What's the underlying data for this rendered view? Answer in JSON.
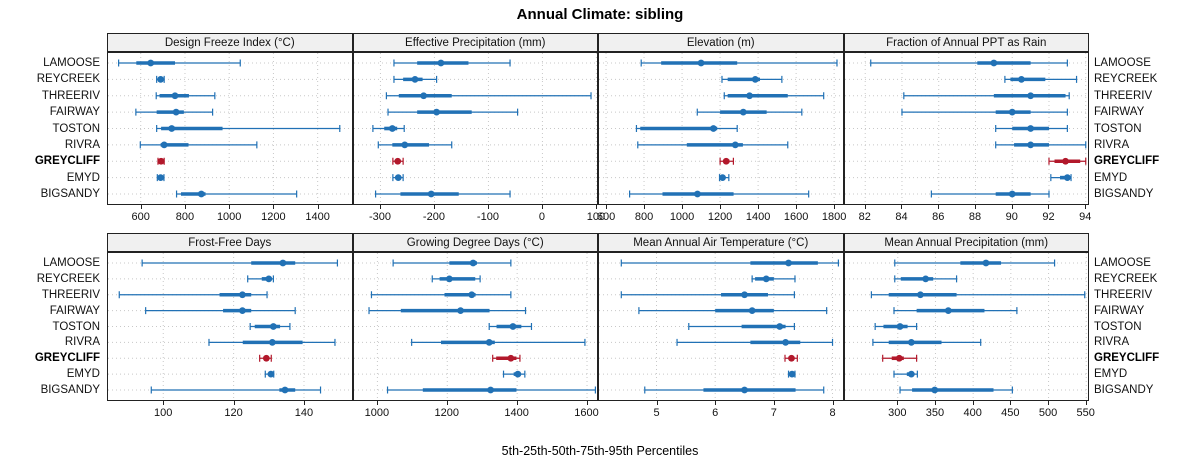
{
  "title": "Annual Climate: sibling",
  "xlabel": "5th-25th-50th-75th-95th Percentiles",
  "sites": [
    "LAMOOSE",
    "REYCREEK",
    "THREERIV",
    "FAIRWAY",
    "TOSTON",
    "RIVRA",
    "GREYCLIFF",
    "EMYD",
    "BIGSANDY"
  ],
  "highlight_site": "GREYCLIFF",
  "colors": {
    "series_normal": "#2171b5",
    "series_highlight": "#b2182b",
    "grid": "#c8c8c8",
    "strip_bg": "#f0f0f0",
    "panel_border": "#222222",
    "text": "#111111"
  },
  "chart_data": {
    "type": "scatter",
    "subtype": "percentile-interval-dotplot",
    "percentiles": [
      5,
      25,
      50,
      75,
      95
    ],
    "grid": "dotted",
    "categories": [
      "LAMOOSE",
      "REYCREEK",
      "THREERIV",
      "FAIRWAY",
      "TOSTON",
      "RIVRA",
      "GREYCLIFF",
      "EMYD",
      "BIGSANDY"
    ],
    "highlight": "GREYCLIFF",
    "panels": [
      {
        "title": "Design Freeze Index (°C)",
        "row": 0,
        "col": 0,
        "xlim": [
          452,
          1553
        ],
        "ticks": [
          600,
          800,
          1000,
          1200,
          1400
        ],
        "values": {
          "LAMOOSE": [
            500,
            580,
            645,
            755,
            1050
          ],
          "REYCREEK": [
            672,
            682,
            690,
            696,
            706
          ],
          "THREERIV": [
            670,
            685,
            755,
            818,
            935
          ],
          "FAIRWAY": [
            578,
            672,
            760,
            795,
            925
          ],
          "TOSTON": [
            672,
            692,
            740,
            970,
            1500
          ],
          "RIVRA": [
            598,
            690,
            706,
            816,
            1125
          ],
          "GREYCLIFF": [
            678,
            686,
            692,
            699,
            706
          ],
          "EMYD": [
            675,
            683,
            690,
            697,
            705
          ],
          "BIGSANDY": [
            762,
            782,
            874,
            893,
            1305
          ]
        }
      },
      {
        "title": "Effective Precipitation (mm)",
        "row": 0,
        "col": 1,
        "xlim": [
          -349,
          102
        ],
        "ticks": [
          -300,
          -200,
          -100,
          0,
          100
        ],
        "values": {
          "LAMOOSE": [
            -275,
            -232,
            -188,
            -137,
            -60
          ],
          "REYCREEK": [
            -275,
            -258,
            -236,
            -222,
            -196
          ],
          "THREERIV": [
            -289,
            -266,
            -220,
            -168,
            90
          ],
          "FAIRWAY": [
            -286,
            -232,
            -196,
            -131,
            -46
          ],
          "TOSTON": [
            -314,
            -293,
            -278,
            -269,
            -256
          ],
          "RIVRA": [
            -304,
            -278,
            -255,
            -210,
            -168
          ],
          "GREYCLIFF": [
            -277,
            -272,
            -268,
            -263,
            -258
          ],
          "EMYD": [
            -277,
            -271,
            -267,
            -263,
            -258
          ],
          "BIGSANDY": [
            -309,
            -263,
            -206,
            -155,
            -60
          ]
        }
      },
      {
        "title": "Elevation (m)",
        "row": 0,
        "col": 2,
        "xlim": [
          563,
          1844
        ],
        "ticks": [
          600,
          800,
          1000,
          1200,
          1400,
          1600,
          1800
        ],
        "values": {
          "LAMOOSE": [
            785,
            890,
            1100,
            1290,
            1815
          ],
          "REYCREEK": [
            1210,
            1240,
            1385,
            1410,
            1525
          ],
          "THREERIV": [
            1222,
            1240,
            1355,
            1556,
            1745
          ],
          "FAIRWAY": [
            1080,
            1200,
            1322,
            1445,
            1630
          ],
          "TOSTON": [
            760,
            780,
            1165,
            1185,
            1290
          ],
          "RIVRA": [
            767,
            1025,
            1280,
            1320,
            1556
          ],
          "GREYCLIFF": [
            1200,
            1222,
            1232,
            1249,
            1270
          ],
          "EMYD": [
            1197,
            1206,
            1213,
            1225,
            1246
          ],
          "BIGSANDY": [
            724,
            897,
            1081,
            1271,
            1666
          ]
        }
      },
      {
        "title": "Fraction of Annual PPT as Rain",
        "row": 0,
        "col": 3,
        "xlim": [
          80.9,
          94.15
        ],
        "ticks": [
          82,
          84,
          86,
          88,
          90,
          92,
          94
        ],
        "values": {
          "LAMOOSE": [
            82.3,
            88.1,
            89.0,
            91.0,
            93.0
          ],
          "REYCREEK": [
            89.6,
            89.9,
            90.5,
            91.8,
            93.5
          ],
          "THREERIV": [
            84.1,
            89.0,
            91.0,
            92.9,
            93.1
          ],
          "FAIRWAY": [
            84.0,
            89.1,
            90.0,
            91.0,
            93.0
          ],
          "TOSTON": [
            89.1,
            90.0,
            91.0,
            92.0,
            93.0
          ],
          "RIVRA": [
            89.1,
            90.1,
            91.0,
            92.0,
            94.0
          ],
          "GREYCLIFF": [
            92.0,
            92.3,
            92.9,
            93.7,
            94.0
          ],
          "EMYD": [
            92.1,
            92.6,
            93.0,
            93.1,
            93.2
          ],
          "BIGSANDY": [
            85.6,
            89.1,
            90.0,
            91.0,
            92.0
          ]
        }
      },
      {
        "title": "Frost-Free Days",
        "row": 1,
        "col": 0,
        "xlim": [
          84.3,
          153.5
        ],
        "ticks": [
          100,
          120,
          140
        ],
        "values": {
          "LAMOOSE": [
            94,
            125,
            134,
            137.5,
            149.5
          ],
          "REYCREEK": [
            124,
            128,
            130,
            130.8,
            131.3
          ],
          "THREERIV": [
            87.5,
            116,
            122.5,
            125,
            129.5
          ],
          "FAIRWAY": [
            95,
            117,
            122.5,
            125,
            137.5
          ],
          "TOSTON": [
            124.7,
            126,
            131.3,
            133.2,
            136
          ],
          "RIVRA": [
            113,
            122.6,
            131,
            139.6,
            148.8
          ],
          "GREYCLIFF": [
            127.4,
            128.5,
            129.3,
            130,
            130.7
          ],
          "EMYD": [
            129,
            130,
            130.6,
            131,
            131.4
          ],
          "BIGSANDY": [
            96.6,
            133,
            134.6,
            137.5,
            144.7
          ]
        }
      },
      {
        "title": "Growing Degree Days (°C)",
        "row": 1,
        "col": 1,
        "xlim": [
          933,
          1630
        ],
        "ticks": [
          1000,
          1200,
          1400,
          1600
        ],
        "values": {
          "LAMOOSE": [
            1045,
            1206,
            1274,
            1285,
            1382
          ],
          "REYCREEK": [
            1157,
            1178,
            1206,
            1280,
            1294
          ],
          "THREERIV": [
            983,
            1192,
            1270,
            1281,
            1382
          ],
          "FAIRWAY": [
            976,
            1067,
            1238,
            1321,
            1424
          ],
          "TOSTON": [
            1320,
            1341,
            1388,
            1412,
            1441
          ],
          "RIVRA": [
            1098,
            1182,
            1320,
            1336,
            1594
          ],
          "GREYCLIFF": [
            1330,
            1340,
            1382,
            1398,
            1408
          ],
          "EMYD": [
            1361,
            1390,
            1402,
            1410,
            1422
          ],
          "BIGSANDY": [
            1029,
            1130,
            1324,
            1398,
            1624
          ]
        }
      },
      {
        "title": "Mean Annual Air Temperature (°C)",
        "row": 1,
        "col": 2,
        "xlim": [
          4.02,
          8.17
        ],
        "ticks": [
          5,
          6,
          7,
          8
        ],
        "values": {
          "LAMOOSE": [
            4.4,
            6.6,
            7.25,
            7.75,
            8.1
          ],
          "REYCREEK": [
            6.63,
            6.68,
            6.87,
            7.0,
            7.36
          ],
          "THREERIV": [
            4.4,
            6.1,
            6.5,
            6.9,
            7.35
          ],
          "FAIRWAY": [
            4.7,
            6.0,
            6.63,
            7.0,
            7.9
          ],
          "TOSTON": [
            5.55,
            6.45,
            7.1,
            7.2,
            7.35
          ],
          "RIVRA": [
            5.35,
            6.6,
            7.2,
            7.45,
            8.0
          ],
          "GREYCLIFF": [
            7.19,
            7.25,
            7.3,
            7.35,
            7.4
          ],
          "EMYD": [
            7.25,
            7.28,
            7.31,
            7.33,
            7.36
          ],
          "BIGSANDY": [
            4.8,
            5.8,
            6.5,
            7.37,
            7.85
          ]
        }
      },
      {
        "title": "Mean Annual Precipitation (mm)",
        "row": 1,
        "col": 3,
        "xlim": [
          230,
          553
        ],
        "ticks": [
          300,
          350,
          400,
          450,
          500,
          550
        ],
        "values": {
          "LAMOOSE": [
            296,
            383,
            417,
            437,
            508
          ],
          "REYCREEK": [
            296,
            304,
            337,
            347,
            378
          ],
          "THREERIV": [
            265,
            288,
            330,
            378,
            548
          ],
          "FAIRWAY": [
            295,
            325,
            367,
            415,
            458
          ],
          "TOSTON": [
            270,
            281,
            303,
            313,
            325
          ],
          "RIVRA": [
            267,
            288,
            318,
            358,
            410
          ],
          "GREYCLIFF": [
            280,
            292,
            302,
            308,
            325
          ],
          "EMYD": [
            295,
            312,
            318,
            321,
            326
          ],
          "BIGSANDY": [
            303,
            319,
            349,
            427,
            452
          ]
        }
      }
    ]
  }
}
